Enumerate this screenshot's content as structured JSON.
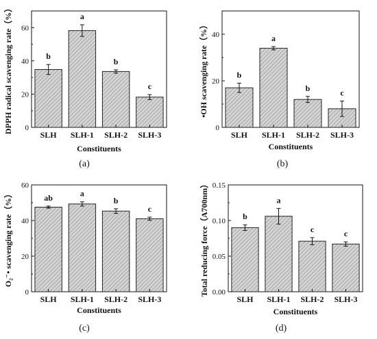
{
  "chart_data": [
    {
      "panel": "(a)",
      "type": "bar",
      "categories": [
        "SLH",
        "SLH-1",
        "SLH-2",
        "SLH-3"
      ],
      "values": [
        34.8,
        58.2,
        33.6,
        18.2
      ],
      "errors": [
        3.0,
        3.5,
        1.0,
        1.5
      ],
      "letters": [
        "b",
        "a",
        "b",
        "c"
      ],
      "xlabel": "Constituents",
      "ylabel": "DPPH radical scavenging rate（%）",
      "ylim": [
        0,
        70
      ],
      "yticks": [
        "0",
        "20",
        "40",
        "60"
      ]
    },
    {
      "panel": "(b)",
      "type": "bar",
      "categories": [
        "SLH",
        "SLH-1",
        "SLH-2",
        "SLH-3"
      ],
      "values": [
        17.0,
        34.0,
        12.0,
        8.0
      ],
      "errors": [
        2.0,
        0.7,
        1.3,
        3.3
      ],
      "letters": [
        "b",
        "a",
        "b",
        "c"
      ],
      "xlabel": "Constituents",
      "ylabel": "•OH  scavenging rate（%）",
      "ylim": [
        0,
        50
      ],
      "yticks": [
        "0",
        "20",
        "40"
      ]
    },
    {
      "panel": "(c)",
      "type": "bar",
      "categories": [
        "SLH",
        "SLH-1",
        "SLH-2",
        "SLH-3"
      ],
      "values": [
        47.5,
        49.3,
        45.3,
        41.0
      ],
      "errors": [
        0.6,
        1.2,
        1.3,
        0.9
      ],
      "letters": [
        "ab",
        "a",
        "b",
        "c"
      ],
      "xlabel": "Constituents",
      "ylabel": "O₂⁻• scavenging rate（%）",
      "ylim": [
        0,
        60
      ],
      "yticks": [
        "0",
        "20",
        "40",
        "60"
      ]
    },
    {
      "panel": "(d)",
      "type": "bar",
      "categories": [
        "SLH",
        "SLH-1",
        "SLH-2",
        "SLH-3"
      ],
      "values": [
        0.09,
        0.106,
        0.071,
        0.067
      ],
      "errors": [
        0.004,
        0.011,
        0.005,
        0.003
      ],
      "letters": [
        "b",
        "a",
        "c",
        "c"
      ],
      "xlabel": "Constituents",
      "ylabel": "Total reducing force（A700nm）",
      "ylim": [
        0,
        0.15
      ],
      "yticks": [
        "0.00",
        "0.05",
        "0.10",
        "0.15"
      ]
    }
  ]
}
